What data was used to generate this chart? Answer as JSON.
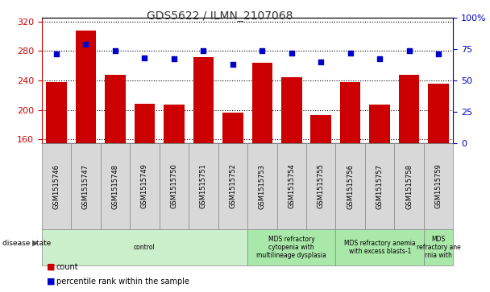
{
  "title": "GDS5622 / ILMN_2107068",
  "samples": [
    "GSM1515746",
    "GSM1515747",
    "GSM1515748",
    "GSM1515749",
    "GSM1515750",
    "GSM1515751",
    "GSM1515752",
    "GSM1515753",
    "GSM1515754",
    "GSM1515755",
    "GSM1515756",
    "GSM1515757",
    "GSM1515758",
    "GSM1515759"
  ],
  "counts": [
    238,
    308,
    248,
    208,
    207,
    272,
    196,
    264,
    244,
    193,
    238,
    207,
    248,
    236
  ],
  "percentiles": [
    71,
    79,
    74,
    68,
    67,
    74,
    63,
    74,
    72,
    65,
    72,
    67,
    74,
    71
  ],
  "ylim_left": [
    155,
    325
  ],
  "ylim_right": [
    0,
    100
  ],
  "yticks_left": [
    160,
    200,
    240,
    280,
    320
  ],
  "yticks_right": [
    0,
    25,
    50,
    75,
    100
  ],
  "bar_color": "#cc0000",
  "dot_color": "#0000cc",
  "left_axis_color": "#cc0000",
  "right_axis_color": "#0000cc",
  "sample_box_color": "#d8d8d8",
  "sample_box_edge": "#888888",
  "disease_groups": [
    {
      "label": "control",
      "start": 0,
      "end": 7,
      "color": "#ccf0cc"
    },
    {
      "label": "MDS refractory\ncytopenia with\nmultilineage dysplasia",
      "start": 7,
      "end": 10,
      "color": "#aae8aa"
    },
    {
      "label": "MDS refractory anemia\nwith excess blasts-1",
      "start": 10,
      "end": 13,
      "color": "#aae8aa"
    },
    {
      "label": "MDS\nrefractory ane\nrnia with",
      "start": 13,
      "end": 14,
      "color": "#aae8aa"
    }
  ],
  "legend_count_label": "count",
  "legend_percentile_label": "percentile rank within the sample",
  "disease_state_label": "disease state"
}
